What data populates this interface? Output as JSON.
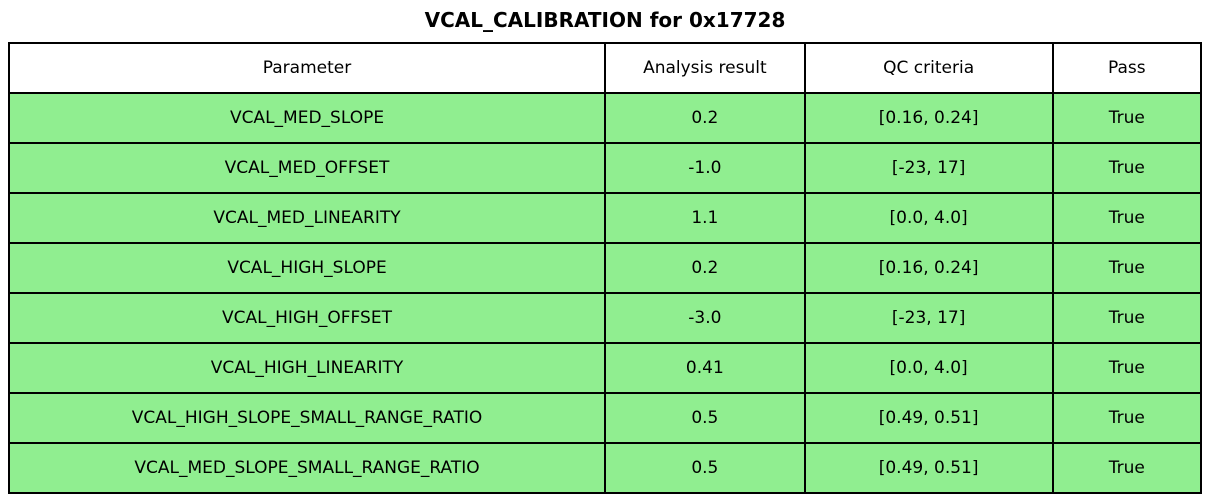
{
  "colors": {
    "pass_green": "#90ee90",
    "border": "#000000",
    "text": "#000000",
    "background": "#ffffff"
  },
  "chart_data": {
    "type": "table",
    "title": "VCAL_CALIBRATION for 0x17728",
    "columns": [
      "Parameter",
      "Analysis result",
      "QC criteria",
      "Pass"
    ],
    "rows": [
      [
        "VCAL_MED_SLOPE",
        "0.2",
        "[0.16, 0.24]",
        "True"
      ],
      [
        "VCAL_MED_OFFSET",
        "-1.0",
        "[-23, 17]",
        "True"
      ],
      [
        "VCAL_MED_LINEARITY",
        "1.1",
        "[0.0, 4.0]",
        "True"
      ],
      [
        "VCAL_HIGH_SLOPE",
        "0.2",
        "[0.16, 0.24]",
        "True"
      ],
      [
        "VCAL_HIGH_OFFSET",
        "-3.0",
        "[-23, 17]",
        "True"
      ],
      [
        "VCAL_HIGH_LINEARITY",
        "0.41",
        "[0.0, 4.0]",
        "True"
      ],
      [
        "VCAL_HIGH_SLOPE_SMALL_RANGE_RATIO",
        "0.5",
        "[0.49, 0.51]",
        "True"
      ],
      [
        "VCAL_MED_SLOPE_SMALL_RANGE_RATIO",
        "0.5",
        "[0.49, 0.51]",
        "True"
      ]
    ],
    "layout": {
      "legend": "none",
      "grid": "cell-borders",
      "all_rows_highlighted_pass_green": true
    }
  }
}
